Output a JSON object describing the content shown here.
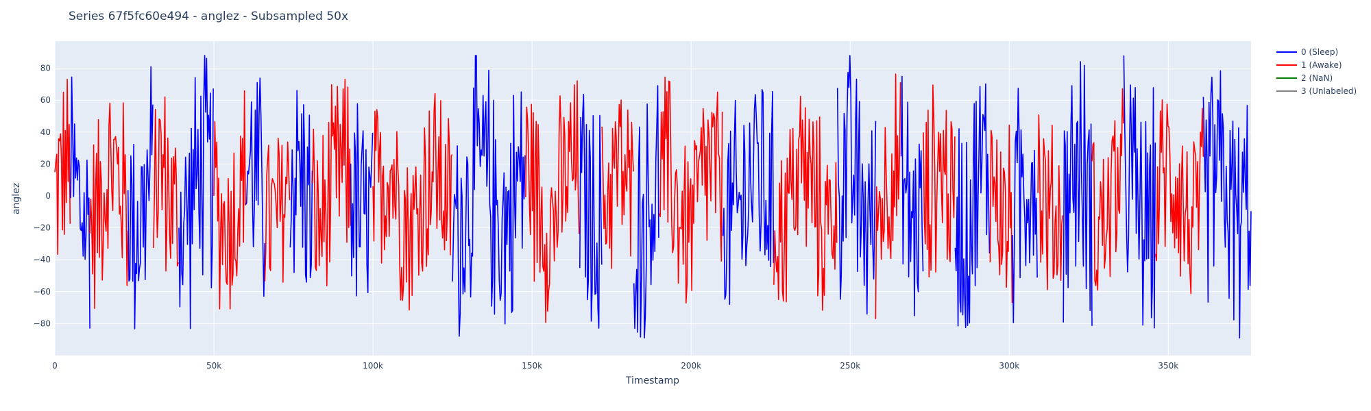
{
  "chart_data": {
    "type": "line",
    "title": "Series 67f5fc60e494 - anglez - Subsampled 50x",
    "xlabel": "Timestamp",
    "ylabel": "anglez",
    "xlim": [
      0,
      376000
    ],
    "ylim": [
      -100,
      97
    ],
    "x_ticks": [
      0,
      50000,
      100000,
      150000,
      200000,
      250000,
      300000,
      350000
    ],
    "x_tick_labels": [
      "0",
      "50k",
      "100k",
      "150k",
      "200k",
      "250k",
      "300k",
      "350k"
    ],
    "y_ticks": [
      -80,
      -60,
      -40,
      -20,
      0,
      20,
      40,
      60,
      80
    ],
    "y_tick_labels": [
      "−80",
      "−60",
      "−40",
      "−20",
      "0",
      "20",
      "40",
      "60",
      "80"
    ],
    "grid": true,
    "legend_position": "top-right outside",
    "background_color": "#e5ecf6",
    "series": [
      {
        "name": "0 (Sleep)",
        "color": "#0000ff"
      },
      {
        "name": "1 (Awake)",
        "color": "#ff0000"
      },
      {
        "name": "2 (NaN)",
        "color": "#008000"
      },
      {
        "name": "3 (Unlabeled)",
        "color": "#808080"
      }
    ],
    "segments": [
      {
        "label": 1,
        "x_start": 0,
        "x_end": 5000
      },
      {
        "label": 0,
        "x_start": 5000,
        "x_end": 11000
      },
      {
        "label": 1,
        "x_start": 11000,
        "x_end": 23000
      },
      {
        "label": 0,
        "x_start": 23000,
        "x_end": 31000
      },
      {
        "label": 1,
        "x_start": 31000,
        "x_end": 39000
      },
      {
        "label": 0,
        "x_start": 39000,
        "x_end": 50000
      },
      {
        "label": 1,
        "x_start": 50000,
        "x_end": 60000
      },
      {
        "label": 0,
        "x_start": 60000,
        "x_end": 66000
      },
      {
        "label": 1,
        "x_start": 66000,
        "x_end": 74000
      },
      {
        "label": 0,
        "x_start": 74000,
        "x_end": 81000
      },
      {
        "label": 1,
        "x_start": 81000,
        "x_end": 93000
      },
      {
        "label": 0,
        "x_start": 93000,
        "x_end": 100000
      },
      {
        "label": 1,
        "x_start": 100000,
        "x_end": 125000
      },
      {
        "label": 0,
        "x_start": 125000,
        "x_end": 148000
      },
      {
        "label": 1,
        "x_start": 148000,
        "x_end": 165000
      },
      {
        "label": 0,
        "x_start": 165000,
        "x_end": 172000
      },
      {
        "label": 1,
        "x_start": 172000,
        "x_end": 182000
      },
      {
        "label": 0,
        "x_start": 182000,
        "x_end": 190000
      },
      {
        "label": 1,
        "x_start": 190000,
        "x_end": 210000
      },
      {
        "label": 0,
        "x_start": 210000,
        "x_end": 226000
      },
      {
        "label": 1,
        "x_start": 226000,
        "x_end": 246000
      },
      {
        "label": 0,
        "x_start": 246000,
        "x_end": 258000
      },
      {
        "label": 1,
        "x_start": 258000,
        "x_end": 266000
      },
      {
        "label": 0,
        "x_start": 266000,
        "x_end": 273000
      },
      {
        "label": 1,
        "x_start": 273000,
        "x_end": 283000
      },
      {
        "label": 0,
        "x_start": 283000,
        "x_end": 294000
      },
      {
        "label": 1,
        "x_start": 294000,
        "x_end": 301000
      },
      {
        "label": 0,
        "x_start": 301000,
        "x_end": 309000
      },
      {
        "label": 1,
        "x_start": 309000,
        "x_end": 317000
      },
      {
        "label": 0,
        "x_start": 317000,
        "x_end": 326000
      },
      {
        "label": 1,
        "x_start": 326000,
        "x_end": 336000
      },
      {
        "label": 0,
        "x_start": 336000,
        "x_end": 346000
      },
      {
        "label": 1,
        "x_start": 346000,
        "x_end": 361000
      },
      {
        "label": 0,
        "x_start": 361000,
        "x_end": 376000
      }
    ],
    "notes": "Values fluctuate rapidly between roughly -88 and +88 throughout; segment colors follow the Sleep/Awake label."
  }
}
